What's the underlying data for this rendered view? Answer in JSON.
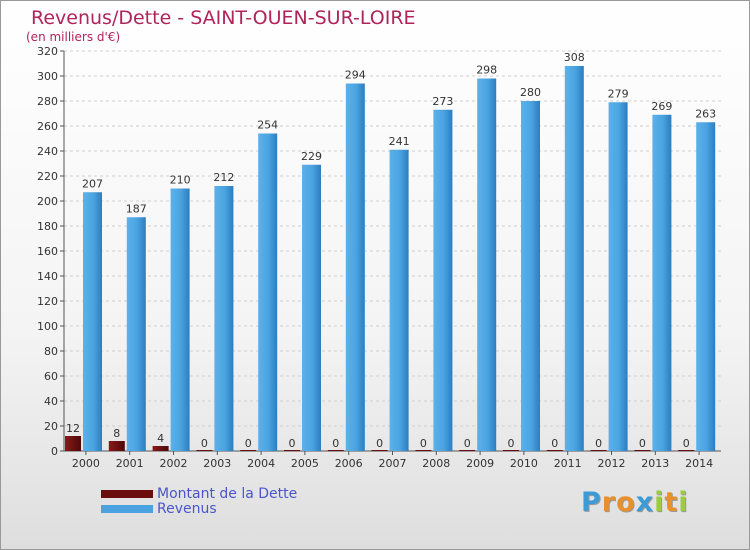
{
  "chart_data": {
    "type": "bar",
    "title": "Revenus/Dette - SAINT-OUEN-SUR-LOIRE",
    "subtitle": "(en milliers d'€)",
    "categories": [
      "2000",
      "2001",
      "2002",
      "2003",
      "2004",
      "2005",
      "2006",
      "2007",
      "2008",
      "2009",
      "2010",
      "2011",
      "2012",
      "2013",
      "2014"
    ],
    "series": [
      {
        "name": "Montant de la Dette",
        "color": "#6b0d0d",
        "values": [
          12,
          8,
          4,
          0,
          0,
          0,
          0,
          0,
          0,
          0,
          0,
          0,
          0,
          0,
          0
        ]
      },
      {
        "name": "Revenus",
        "color": "#4aa3e0",
        "values": [
          207,
          187,
          210,
          212,
          254,
          229,
          294,
          241,
          273,
          298,
          280,
          308,
          279,
          269,
          263
        ]
      }
    ],
    "ylim": [
      0,
      320
    ],
    "yticks": [
      0,
      20,
      40,
      60,
      80,
      100,
      120,
      140,
      160,
      180,
      200,
      220,
      240,
      260,
      280,
      300,
      320
    ],
    "grid": true,
    "legend_position": "bottom-left"
  },
  "brand": {
    "letters": [
      "P",
      "r",
      "o",
      "x",
      "i",
      "t",
      "i"
    ],
    "colors": [
      "#3b9bd6",
      "#e8902c",
      "#e8902c",
      "#3b9bd6",
      "#9ccc3c",
      "#e8902c",
      "#9ccc3c"
    ]
  }
}
